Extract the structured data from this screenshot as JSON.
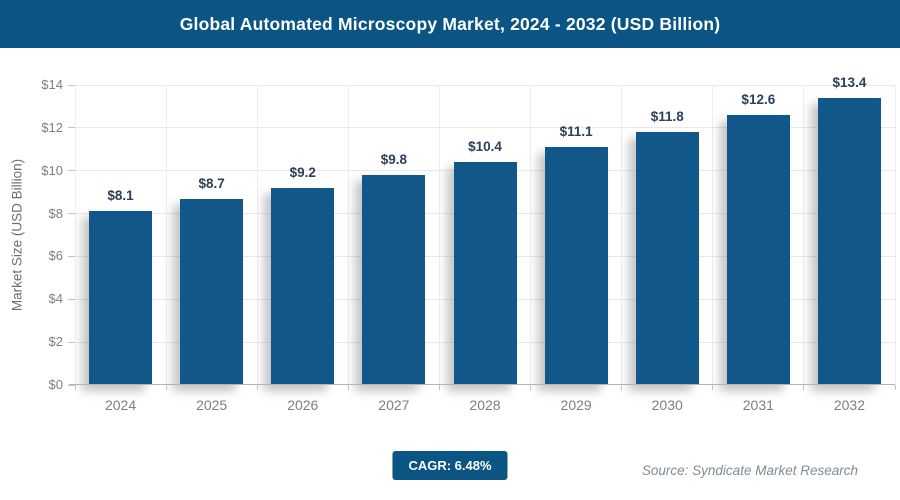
{
  "header": {
    "title": "Global Automated Microscopy Market, 2024 - 2032 (USD Billion)"
  },
  "chart_data": {
    "type": "bar",
    "title": "Global Automated Microscopy Market, 2024 - 2032 (USD Billion)",
    "categories": [
      "2024",
      "2025",
      "2026",
      "2027",
      "2028",
      "2029",
      "2030",
      "2031",
      "2032"
    ],
    "values": [
      8.1,
      8.7,
      9.2,
      9.8,
      10.4,
      11.1,
      11.8,
      12.6,
      13.4
    ],
    "bar_labels": [
      "$8.1",
      "$8.7",
      "$9.2",
      "$9.8",
      "$10.4",
      "$11.1",
      "$11.8",
      "$12.6",
      "$13.4"
    ],
    "xlabel": "",
    "ylabel": "Market Size (USD Billion)",
    "ylim": [
      0,
      14
    ],
    "ytick_step": 2,
    "y_ticks": [
      "$0",
      "$2",
      "$4",
      "$6",
      "$8",
      "$10",
      "$12",
      "$14"
    ],
    "grid": true,
    "legend": "none",
    "bar_color": "#11578a"
  },
  "footer": {
    "cagr_label": "CAGR: 6.48%",
    "source": "Source: Syndicate Market Research"
  },
  "colors": {
    "header_bg": "#0b5585",
    "bar": "#11578a",
    "badge_bg": "#0b5585",
    "value_label": "#2e4057",
    "axis_text": "#7f7f7f",
    "gridline": "#e8e8e8",
    "source_text": "#7d8c96"
  }
}
